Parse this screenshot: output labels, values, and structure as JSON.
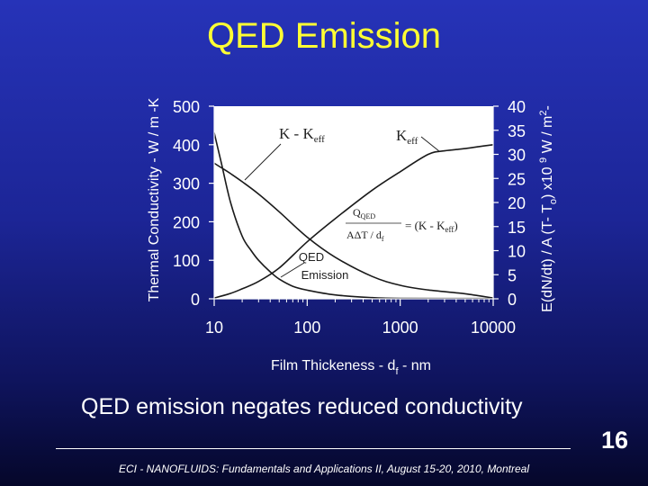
{
  "slide": {
    "title": "QED Emission",
    "subtitle": "QED emission negates reduced conductivity",
    "page_number": "16",
    "footer": "ECI - NANOFLUIDS: Fundamentals and Applications II, August 15-20, 2010, Montreal",
    "title_color": "#ffff33"
  },
  "chart_data": {
    "type": "line",
    "xscale": "log",
    "xlim": [
      10,
      10000
    ],
    "ylim_left": [
      0,
      500
    ],
    "ylim_right": [
      0,
      40
    ],
    "xticks": [
      10,
      100,
      1000,
      10000
    ],
    "xtick_labels": [
      "10",
      "100",
      "1000",
      "10000"
    ],
    "yticks_left": [
      0,
      100,
      200,
      300,
      400,
      500
    ],
    "yticks_left_labels": [
      "0",
      "100",
      "200",
      "300",
      "400",
      "500"
    ],
    "yticks_right": [
      0,
      5,
      10,
      15,
      20,
      25,
      30,
      35,
      40
    ],
    "yticks_right_labels": [
      "0",
      "5",
      "10",
      "15",
      "20",
      "25",
      "30",
      "35",
      "40"
    ],
    "xlabel": "Film Thickeness - d",
    "xlabel_sub": "f",
    "xlabel_suffix": " - nm",
    "ylabel_left": "Thermal Conductivity - W / m -K",
    "ylabel_right": "E(dN/dt) / A  (T- T",
    "ylabel_right_sub": "o",
    "ylabel_right_suffix": ") x10 ",
    "ylabel_right_sup": "9",
    "ylabel_right_suffix2": " W / m",
    "ylabel_right_sup2": "2",
    "ylabel_right_end": "-",
    "grid": false,
    "series": [
      {
        "name": "K - K_eff",
        "axis": "left",
        "x": [
          10,
          12,
          15,
          20,
          30,
          50,
          100,
          200,
          500,
          1000,
          2000,
          5000,
          10000
        ],
        "y": [
          352,
          340,
          325,
          304,
          272,
          226,
          160,
          108,
          58,
          35,
          23,
          13,
          2
        ]
      },
      {
        "name": "K_eff",
        "axis": "left",
        "x": [
          10,
          15,
          20,
          30,
          50,
          100,
          200,
          500,
          1000,
          2000,
          3000,
          5000,
          7000,
          10000
        ],
        "y": [
          2,
          14,
          26,
          45,
          80,
          148,
          208,
          282,
          330,
          375,
          384,
          390,
          395,
          400
        ]
      },
      {
        "name": "QED Emission",
        "axis": "right",
        "x": [
          10,
          12,
          15,
          20,
          25,
          30,
          40,
          50,
          70,
          100,
          200,
          500,
          1000,
          10000
        ],
        "y": [
          34.5,
          28,
          20,
          13,
          10,
          8,
          5.6,
          4.1,
          2.6,
          1.8,
          0.8,
          0.25,
          0.1,
          0.05
        ]
      }
    ],
    "annotations": [
      {
        "text": "K - K",
        "sub": "eff"
      },
      {
        "text": "K",
        "sub": "eff"
      },
      {
        "text": "QED",
        "text2": "Emission"
      }
    ],
    "equation": {
      "numerator": "Q",
      "numerator_sub": "QED",
      "denominator": "AΔT / d",
      "denominator_sub": "f",
      "rhs": "= (K - K",
      "rhs_sub": "eff",
      "rhs_end": ")"
    }
  }
}
